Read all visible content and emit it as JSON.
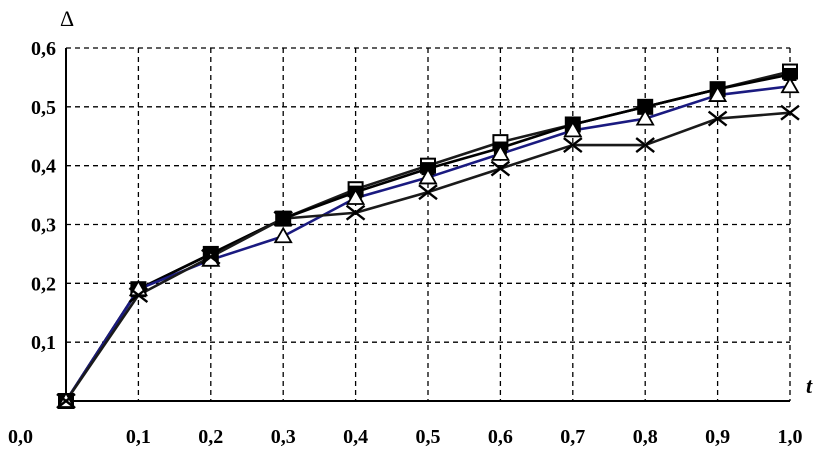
{
  "chart_data": {
    "type": "line",
    "xlabel": "t",
    "ylabel": "Δ",
    "x_ticks": [
      "0,0",
      "0,1",
      "0,2",
      "0,3",
      "0,4",
      "0,5",
      "0,6",
      "0,7",
      "0,8",
      "0,9",
      "1,0"
    ],
    "y_ticks": [
      "0,1",
      "0,2",
      "0,3",
      "0,4",
      "0,5",
      "0,6"
    ],
    "xlim": [
      0,
      1.0
    ],
    "ylim": [
      0,
      0.6
    ],
    "grid": true,
    "x": [
      0,
      0.1,
      0.2,
      0.3,
      0.4,
      0.5,
      0.6,
      0.7,
      0.8,
      0.9,
      1.0
    ],
    "series": [
      {
        "marker": "square-open",
        "color": "#1a1a1a",
        "values": [
          0,
          0.19,
          0.25,
          0.31,
          0.36,
          0.4,
          0.44,
          0.47,
          0.5,
          0.53,
          0.56
        ]
      },
      {
        "marker": "square-filled",
        "color": "#000000",
        "values": [
          0,
          0.19,
          0.25,
          0.31,
          0.355,
          0.395,
          0.43,
          0.47,
          0.5,
          0.53,
          0.555
        ]
      },
      {
        "marker": "triangle-open",
        "color": "#1a1a80",
        "values": [
          0,
          0.19,
          0.24,
          0.28,
          0.345,
          0.38,
          0.42,
          0.46,
          0.48,
          0.52,
          0.535
        ]
      },
      {
        "marker": "cross",
        "color": "#1a1a1a",
        "values": [
          0,
          0.18,
          0.245,
          0.31,
          0.32,
          0.355,
          0.395,
          0.435,
          0.435,
          0.48,
          0.49
        ]
      }
    ]
  }
}
